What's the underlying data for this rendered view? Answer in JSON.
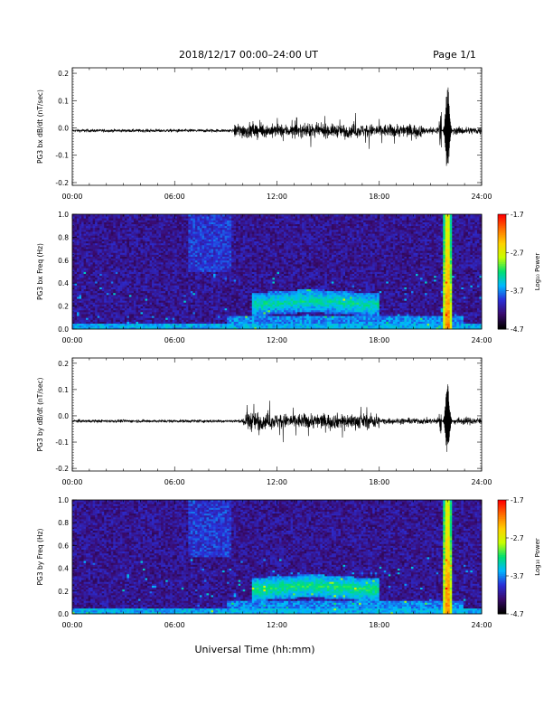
{
  "header": {
    "date_range": "2018/12/17   00:00–24:00 UT",
    "page": "Page 1/1"
  },
  "footer": {
    "xlabel": "Universal Time (hh:mm)"
  },
  "colors": {
    "background": "#ffffff",
    "trace": "#000000",
    "spectro_bg": "#1c0f33",
    "colormap": [
      "#000000",
      "#3a0b6e",
      "#2a2fd8",
      "#00b8ff",
      "#00e070",
      "#c8ff00",
      "#ffd000",
      "#ff7000",
      "#ff0000"
    ]
  },
  "chart_data": [
    {
      "type": "line",
      "ylabel": "PG3 bx dB/dt (nT/sec)",
      "xticks": [
        "00:00",
        "06:00",
        "12:00",
        "18:00",
        "24:00"
      ],
      "xlim": [
        0,
        24
      ],
      "ylim": [
        -0.21,
        0.22
      ],
      "yticks": [
        "0.2",
        "0.1",
        "0.0",
        "-0.1",
        "-0.2"
      ],
      "baseline": -0.01,
      "activity": [
        {
          "start": 0,
          "end": 9.5,
          "amplitude": 0.006
        },
        {
          "start": 9.5,
          "end": 11.0,
          "amplitude": 0.03
        },
        {
          "start": 11.0,
          "end": 20.5,
          "amplitude": 0.025
        },
        {
          "start": 20.5,
          "end": 21.5,
          "amplitude": 0.015
        },
        {
          "start": 21.5,
          "end": 22.3,
          "amplitude": 0.08
        },
        {
          "start": 22.3,
          "end": 24,
          "amplitude": 0.015
        }
      ],
      "peaks": [
        {
          "t": 22.0,
          "max": 0.16,
          "min": -0.17
        }
      ]
    },
    {
      "type": "heatmap",
      "ylabel": "PG3 bx Freq (Hz)",
      "xticks": [
        "00:00",
        "06:00",
        "12:00",
        "18:00",
        "24:00"
      ],
      "yticks": [
        "1.0",
        "0.8",
        "0.6",
        "0.4",
        "0.2",
        "0.0"
      ],
      "xlim": [
        0,
        24
      ],
      "ylim": [
        0,
        1.0
      ],
      "colorbar": {
        "label": "Log₁₀ Power",
        "ticks": [
          "-1.7",
          "-2.7",
          "-3.7",
          "-4.7"
        ],
        "range": [
          -4.7,
          -1.7
        ]
      },
      "features": [
        {
          "name": "broadband_burst",
          "t": 22.0,
          "power": -1.9
        },
        {
          "name": "pc1_band",
          "t_start": 10.5,
          "t_end": 18.0,
          "f_low": 0.15,
          "f_high": 0.35,
          "power": -3.3
        },
        {
          "name": "low_freq_floor",
          "f_high": 0.05,
          "power": -3.6
        }
      ]
    },
    {
      "type": "line",
      "ylabel": "PG3 by dB/dt (nT/sec)",
      "xticks": [
        "00:00",
        "06:00",
        "12:00",
        "18:00",
        "24:00"
      ],
      "xlim": [
        0,
        24
      ],
      "ylim": [
        -0.21,
        0.22
      ],
      "yticks": [
        "0.2",
        "0.1",
        "0.0",
        "-0.1",
        "-0.2"
      ],
      "baseline": -0.02,
      "activity": [
        {
          "start": 0,
          "end": 10.0,
          "amplitude": 0.006
        },
        {
          "start": 10.0,
          "end": 11.0,
          "amplitude": 0.04
        },
        {
          "start": 11.0,
          "end": 18.0,
          "amplitude": 0.03
        },
        {
          "start": 18.0,
          "end": 21.5,
          "amplitude": 0.012
        },
        {
          "start": 21.5,
          "end": 22.3,
          "amplitude": 0.07
        },
        {
          "start": 22.3,
          "end": 24,
          "amplitude": 0.015
        }
      ],
      "peaks": [
        {
          "t": 22.0,
          "max": 0.13,
          "min": -0.16
        }
      ]
    },
    {
      "type": "heatmap",
      "ylabel": "PG3 by Freq (Hz)",
      "xticks": [
        "00:00",
        "06:00",
        "12:00",
        "18:00",
        "24:00"
      ],
      "yticks": [
        "1.0",
        "0.8",
        "0.6",
        "0.4",
        "0.2",
        "0.0"
      ],
      "xlim": [
        0,
        24
      ],
      "ylim": [
        0,
        1.0
      ],
      "colorbar": {
        "label": "Log₁₀ Power",
        "ticks": [
          "-1.7",
          "-2.7",
          "-3.7",
          "-4.7"
        ],
        "range": [
          -4.7,
          -1.7
        ]
      },
      "features": [
        {
          "name": "broadband_burst",
          "t": 22.0,
          "power": -1.9
        },
        {
          "name": "pc1_band",
          "t_start": 10.5,
          "t_end": 18.0,
          "f_low": 0.15,
          "f_high": 0.35,
          "power": -3.2
        },
        {
          "name": "low_freq_floor",
          "f_high": 0.05,
          "power": -3.6
        }
      ]
    }
  ]
}
